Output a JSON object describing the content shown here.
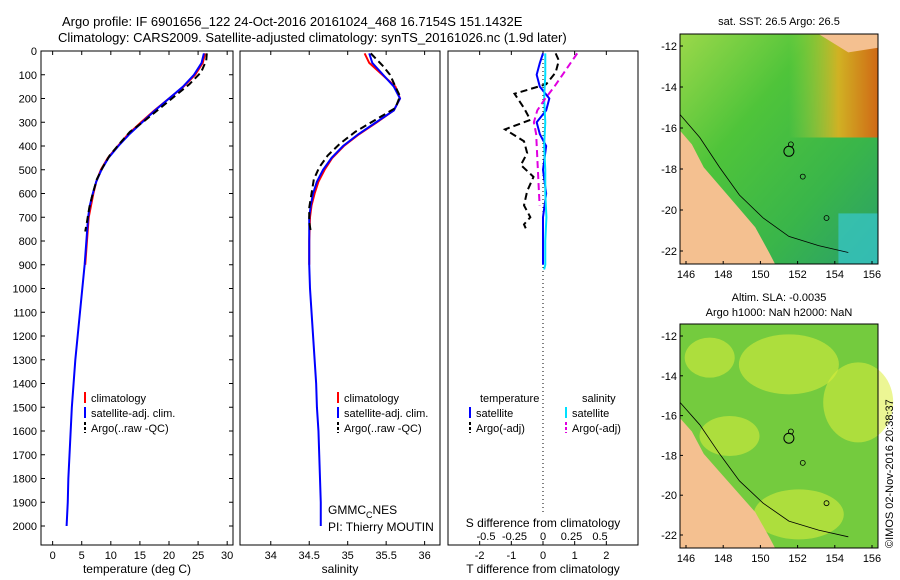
{
  "titles": {
    "line1": "Argo profile: IF 6901656_122 24-Oct-2016 20161024_468 16.7154S 151.1432E",
    "line2": "Climatology: CARS2009. Satellite-adjusted climatology: synTS_20161026.nc (1.9d later)"
  },
  "chart_data": [
    {
      "type": "line",
      "name": "temperature-profile",
      "xlabel": "temperature (deg C)",
      "ylabel": "",
      "xlim": [
        -2,
        31
      ],
      "ylim": [
        0,
        2080
      ],
      "xticks": [
        0,
        5,
        10,
        15,
        20,
        25,
        30
      ],
      "yticks": [
        0,
        100,
        200,
        300,
        400,
        500,
        600,
        700,
        800,
        900,
        1000,
        1100,
        1200,
        1300,
        1400,
        1500,
        1600,
        1700,
        1800,
        1900,
        2000
      ],
      "legend": [
        "climatology",
        "satellite-adj. clim.",
        "Argo(..raw -QC)"
      ],
      "series": [
        {
          "name": "climatology",
          "color": "#ff0000",
          "style": "solid",
          "x": [
            26.2,
            25.8,
            24.5,
            22.5,
            20.0,
            17.5,
            15.2,
            13.0,
            11.2,
            9.5,
            8.3,
            7.5,
            7.0,
            6.6,
            6.2,
            5.9,
            5.6
          ],
          "y": [
            10,
            50,
            100,
            150,
            200,
            250,
            300,
            350,
            400,
            450,
            500,
            550,
            600,
            650,
            700,
            800,
            900
          ]
        },
        {
          "name": "satellite-adj. clim.",
          "color": "#0000ff",
          "style": "solid",
          "x": [
            26.0,
            25.6,
            24.3,
            22.4,
            20.0,
            17.6,
            15.4,
            13.2,
            11.3,
            9.6,
            8.4,
            7.5,
            6.9,
            6.4,
            6.1,
            5.8,
            5.5,
            5.1,
            4.7,
            4.3,
            3.9,
            3.6,
            3.3,
            3.1,
            2.9,
            2.7,
            2.6,
            2.5,
            2.4
          ],
          "y": [
            10,
            50,
            100,
            150,
            200,
            250,
            300,
            350,
            400,
            450,
            500,
            550,
            600,
            650,
            700,
            800,
            900,
            1000,
            1100,
            1200,
            1300,
            1400,
            1500,
            1600,
            1700,
            1800,
            1900,
            1950,
            2000
          ]
        },
        {
          "name": "Argo(..raw -QC)",
          "color": "#000000",
          "style": "dash",
          "x": [
            26.5,
            26.4,
            25.5,
            23.5,
            21.0,
            18.5,
            16.0,
            13.3,
            11.5,
            9.8,
            8.6,
            7.6,
            6.9,
            6.3,
            5.9,
            5.6
          ],
          "y": [
            10,
            40,
            90,
            140,
            190,
            240,
            290,
            340,
            390,
            440,
            490,
            540,
            600,
            660,
            720,
            760
          ]
        }
      ]
    },
    {
      "type": "line",
      "name": "salinity-profile",
      "xlabel": "salinity",
      "xlim": [
        33.6,
        36.2
      ],
      "ylim": [
        0,
        2080
      ],
      "xticks": [
        34,
        34.5,
        35,
        35.5,
        36
      ],
      "xticklabels": [
        "34",
        "34.5",
        "35",
        "35.5",
        "36"
      ],
      "legend": [
        "climatology",
        "satellite-adj. clim.",
        "Argo(..raw -QC)"
      ],
      "series": [
        {
          "name": "climatology",
          "color": "#ff0000",
          "style": "solid",
          "x": [
            35.22,
            35.28,
            35.45,
            35.62,
            35.68,
            35.6,
            35.38,
            35.15,
            34.95,
            34.8,
            34.7,
            34.62,
            34.57,
            34.53,
            34.51,
            34.5,
            34.5
          ],
          "y": [
            10,
            50,
            100,
            150,
            200,
            250,
            300,
            350,
            400,
            450,
            500,
            550,
            600,
            650,
            700,
            800,
            900
          ]
        },
        {
          "name": "satellite-adj. clim.",
          "color": "#0000ff",
          "style": "solid",
          "x": [
            35.28,
            35.32,
            35.46,
            35.6,
            35.68,
            35.6,
            35.37,
            35.14,
            34.94,
            34.79,
            34.68,
            34.6,
            34.55,
            34.52,
            34.5,
            34.5,
            34.5,
            34.51,
            34.53,
            34.55,
            34.57,
            34.59,
            34.6,
            34.62,
            34.63,
            34.64,
            34.65,
            34.65,
            34.65
          ],
          "y": [
            10,
            50,
            100,
            150,
            200,
            250,
            300,
            350,
            400,
            450,
            500,
            550,
            600,
            650,
            700,
            800,
            900,
            1000,
            1100,
            1200,
            1300,
            1400,
            1500,
            1600,
            1700,
            1800,
            1900,
            1950,
            2000
          ]
        },
        {
          "name": "Argo(..raw -QC)",
          "color": "#000000",
          "style": "dash",
          "x": [
            35.3,
            35.45,
            35.55,
            35.62,
            35.68,
            35.62,
            35.36,
            35.1,
            34.9,
            34.74,
            34.63,
            34.56,
            34.53,
            34.5,
            34.5,
            34.52
          ],
          "y": [
            10,
            60,
            100,
            150,
            190,
            240,
            290,
            340,
            390,
            440,
            490,
            540,
            600,
            660,
            720,
            760
          ]
        }
      ]
    },
    {
      "type": "line",
      "name": "difference-profile",
      "xlabel": "T difference from climatology",
      "x2label": "S difference from climatology",
      "xlim": [
        -3,
        3
      ],
      "ylim": [
        0,
        2080
      ],
      "xticks": [
        -2,
        -1,
        0,
        1,
        2
      ],
      "x2ticks": [
        "-0.5",
        "-0.25",
        "0",
        "0.25",
        "0.5"
      ],
      "legend_left_title": "temperature",
      "legend_right_title": "salinity",
      "legend": [
        "satellite",
        "Argo(-adj)",
        "satellite",
        "Argo(-adj)"
      ],
      "series": [
        {
          "name": "T satellite",
          "color": "#0000ff",
          "style": "solid",
          "x": [
            0,
            -0.1,
            -0.2,
            -0.1,
            0.2,
            0.1,
            -0.2,
            -0.1,
            0.1,
            0.05,
            0,
            0.05,
            0.1,
            0.05,
            0,
            0
          ],
          "y": [
            10,
            50,
            100,
            150,
            200,
            250,
            300,
            350,
            400,
            450,
            500,
            550,
            600,
            650,
            700,
            900
          ]
        },
        {
          "name": "T Argo(-adj)",
          "color": "#000000",
          "style": "dash",
          "x": [
            0.4,
            0.5,
            0.4,
            0.1,
            -0.9,
            -0.6,
            -0.4,
            -1.2,
            -0.6,
            -0.5,
            -0.7,
            -0.3,
            -0.5,
            -0.6,
            -0.4,
            -0.6,
            -0.5
          ],
          "y": [
            10,
            40,
            90,
            140,
            180,
            240,
            290,
            330,
            380,
            430,
            480,
            530,
            590,
            650,
            700,
            730,
            760
          ]
        },
        {
          "name": "S satellite",
          "color": "#00e0ff",
          "style": "solid",
          "x": [
            0.02,
            0.02,
            0.01,
            0.02,
            0.01,
            0.02,
            0.02,
            0.03,
            0.02,
            0.02,
            0.02,
            0.01
          ],
          "y": [
            10,
            100,
            200,
            300,
            400,
            500,
            600,
            700,
            800,
            850,
            900,
            920
          ]
        },
        {
          "name": "S Argo(-adj)",
          "color": "#e000e0",
          "style": "dash",
          "x": [
            0.3,
            0.2,
            0.1,
            0.02,
            -0.05,
            -0.08,
            -0.06,
            -0.05,
            -0.04,
            -0.03
          ],
          "y": [
            10,
            80,
            150,
            200,
            250,
            300,
            350,
            450,
            550,
            650
          ]
        }
      ],
      "annotations": [
        "GMMC_C NES",
        "PI: Thierry MOUTIN"
      ]
    },
    {
      "type": "heatmap",
      "name": "sst-map",
      "title": "sat. SST: 26.5 Argo: 26.5",
      "xticks": [
        "146",
        "148",
        "150",
        "152",
        "154",
        "156"
      ],
      "yticks": [
        "-12",
        "-14",
        "-16",
        "-18",
        "-20",
        "-22"
      ]
    },
    {
      "type": "heatmap",
      "name": "sla-map",
      "title1": "Altim. SLA: -0.0035",
      "title2": "Argo h1000: NaN h2000: NaN",
      "xticks": [
        "146",
        "148",
        "150",
        "152",
        "154",
        "156"
      ],
      "yticks": [
        "-12",
        "-14",
        "-16",
        "-18",
        "-20",
        "-22"
      ]
    }
  ],
  "annotations": {
    "gmmc": "GMMC",
    "gmmc_sub": "C",
    "gmmc_end": "NES",
    "pi": "PI: Thierry MOUTIN",
    "imos": "©IMOS 02-Nov-2016 20:38:37"
  }
}
